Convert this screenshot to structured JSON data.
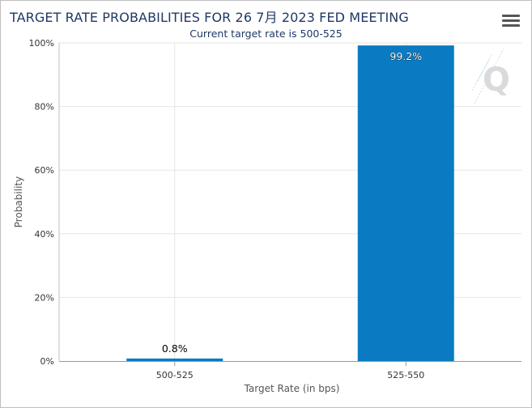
{
  "header": {
    "title": "TARGET RATE PROBABILITIES FOR 26 7月 2023 FED MEETING",
    "subtitle": "Current target rate is 500-525",
    "menu_icon": "hamburger-menu-icon"
  },
  "watermark": {
    "letter": "Q"
  },
  "colors": {
    "bar": "#0a7bc2",
    "title": "#1f3864",
    "grid": "#e6e6e6"
  },
  "chart_data": {
    "type": "bar",
    "title": "TARGET RATE PROBABILITIES FOR 26 7月 2023 FED MEETING",
    "subtitle": "Current target rate is 500-525",
    "xlabel": "Target Rate (in bps)",
    "ylabel": "Probability",
    "categories": [
      "500-525",
      "525-550"
    ],
    "values": [
      0.8,
      99.2
    ],
    "data_labels": [
      "0.8%",
      "99.2%"
    ],
    "ylim": [
      0,
      100
    ],
    "yticks": [
      0,
      20,
      40,
      60,
      80,
      100
    ],
    "ytick_labels": [
      "0%",
      "20%",
      "40%",
      "60%",
      "80%",
      "100%"
    ],
    "grid": true,
    "legend": "none"
  }
}
